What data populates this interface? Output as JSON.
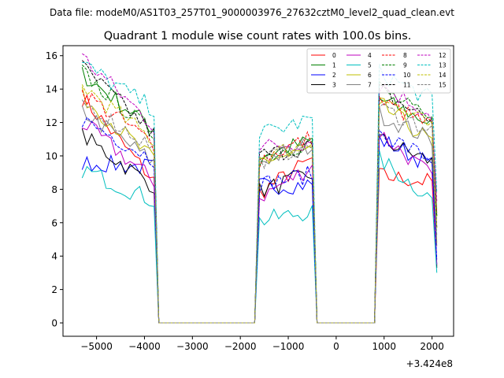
{
  "chart_data": {
    "type": "line",
    "suptitle": "Data file: modeM0/AS1T03_257T01_9000003976_27632cztM0_level2_quad_clean.evt",
    "title": "Quadrant 1 module wise count rates with 100.0s bins.",
    "xlabel": "",
    "ylabel": "",
    "offset_text": "+3.424e8",
    "xlim": [
      -5700,
      2450
    ],
    "ylim": [
      -0.8,
      16.6
    ],
    "x_ticks": [
      -5000,
      -4000,
      -3000,
      -2000,
      -1000,
      0,
      1000,
      2000
    ],
    "x_tick_labels": [
      "−5000",
      "−4000",
      "−3000",
      "−2000",
      "−1000",
      "0",
      "1000",
      "2000"
    ],
    "y_ticks": [
      0,
      2,
      4,
      6,
      8,
      10,
      12,
      14,
      16
    ],
    "y_tick_labels": [
      "0",
      "2",
      "4",
      "6",
      "8",
      "10",
      "12",
      "14",
      "16"
    ],
    "legend_position": "upper right",
    "legend_columns": 4,
    "segments": [
      {
        "x_start": -5300,
        "x_end": -3800
      },
      {
        "x_start": -1600,
        "x_end": -500
      },
      {
        "x_start": 900,
        "x_end": 2100
      }
    ],
    "gaps": [
      {
        "x_start": -3700,
        "x_end": -1700
      },
      {
        "x_start": -400,
        "x_end": 800
      }
    ],
    "series": [
      {
        "name": "0",
        "color": "#ff0000",
        "dash": "solid",
        "levels": [
          13.5,
          8.5,
          7.8,
          9.8,
          8.8,
          8.4
        ]
      },
      {
        "name": "1",
        "color": "#008000",
        "dash": "solid",
        "levels": [
          14.9,
          11.6,
          10.0,
          10.9,
          13.4,
          11.8
        ]
      },
      {
        "name": "2",
        "color": "#0000ff",
        "dash": "solid",
        "levels": [
          9.6,
          9.3,
          8.2,
          8.3,
          11.0,
          9.3
        ]
      },
      {
        "name": "3",
        "color": "#000000",
        "dash": "solid",
        "levels": [
          11.2,
          8.2,
          7.9,
          8.9,
          11.0,
          9.5
        ]
      },
      {
        "name": "4",
        "color": "#bf00bf",
        "dash": "solid",
        "levels": [
          12.0,
          8.5,
          7.5,
          9.4,
          11.4,
          8.5
        ]
      },
      {
        "name": "5",
        "color": "#00bfbf",
        "dash": "solid",
        "levels": [
          9.2,
          7.3,
          6.1,
          6.7,
          9.8,
          7.2
        ]
      },
      {
        "name": "6",
        "color": "#bfbf00",
        "dash": "solid",
        "levels": [
          13.6,
          9.7,
          9.7,
          10.3,
          13.1,
          10.6
        ]
      },
      {
        "name": "7",
        "color": "#808080",
        "dash": "solid",
        "levels": [
          12.7,
          9.6,
          9.7,
          10.6,
          12.5,
          10.8
        ]
      },
      {
        "name": "8",
        "color": "#ff0000",
        "dash": "dashed",
        "levels": [
          13.8,
          10.7,
          9.8,
          11.1,
          13.3,
          11.6
        ]
      },
      {
        "name": "9",
        "color": "#008000",
        "dash": "dashed",
        "levels": [
          15.0,
          11.3,
          9.9,
          10.9,
          14.1,
          11.8
        ]
      },
      {
        "name": "10",
        "color": "#0000ff",
        "dash": "dashed",
        "levels": [
          12.2,
          9.8,
          8.3,
          8.9,
          11.4,
          9.6
        ]
      },
      {
        "name": "11",
        "color": "#000000",
        "dash": "dashed",
        "levels": [
          15.3,
          11.3,
          10.0,
          10.6,
          13.9,
          11.9
        ]
      },
      {
        "name": "12",
        "color": "#bf00bf",
        "dash": "dashed",
        "levels": [
          15.9,
          11.8,
          10.5,
          10.9,
          14.3,
          12.3
        ]
      },
      {
        "name": "13",
        "color": "#00bfbf",
        "dash": "dashed",
        "levels": [
          15.5,
          12.8,
          11.3,
          12.2,
          15.0,
          13.2
        ]
      },
      {
        "name": "14",
        "color": "#bfbf00",
        "dash": "dashed",
        "levels": [
          14.2,
          10.9,
          9.9,
          10.8,
          13.6,
          11.5
        ]
      },
      {
        "name": "15",
        "color": "#808080",
        "dash": "dashed",
        "levels": [
          13.2,
          10.5,
          9.7,
          10.7,
          12.9,
          11.4
        ]
      }
    ]
  }
}
